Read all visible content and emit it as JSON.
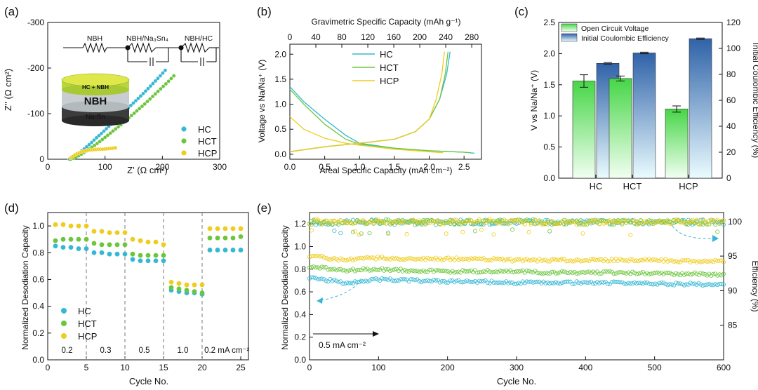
{
  "colors": {
    "hc": "#36b8d4",
    "hct": "#6cc63c",
    "hcp": "#f0cc1c",
    "ocv_top": "#46d646",
    "ice_top": "#2f62a8"
  },
  "chart_data": [
    {
      "id": "a",
      "panel_label": "(a)",
      "type": "scatter",
      "xlabel": "Z' (Ω cm²)",
      "ylabel": "Z'' (Ω cm²)",
      "xlim": [
        0,
        300
      ],
      "ylim": [
        0,
        -300
      ],
      "xticks": [
        "0",
        "100",
        "200",
        "300"
      ],
      "yticks": [
        "0",
        "-100",
        "-200",
        "-300"
      ],
      "legend": [
        "HC",
        "HCT",
        "HCP"
      ],
      "circuit": [
        "NBH",
        "NBH/Na₃Sn₄",
        "NBH/HC"
      ],
      "cell_layers": [
        "HC + NBH",
        "NBH",
        "Na-Sn"
      ],
      "series": [
        {
          "name": "HC",
          "x": [
            38,
            45,
            55,
            65,
            75,
            85,
            95,
            105,
            115,
            125,
            135,
            145,
            155,
            165,
            175,
            185,
            195,
            205
          ],
          "y": [
            0,
            -5,
            -14,
            -24,
            -35,
            -47,
            -58,
            -70,
            -82,
            -94,
            -106,
            -118,
            -130,
            -142,
            -155,
            -168,
            -181,
            -195
          ]
        },
        {
          "name": "HCT",
          "x": [
            40,
            50,
            60,
            70,
            80,
            90,
            100,
            110,
            120,
            130,
            140,
            150,
            160,
            170,
            180,
            190,
            200,
            210,
            220
          ],
          "y": [
            0,
            -5,
            -12,
            -20,
            -29,
            -38,
            -48,
            -58,
            -68,
            -78,
            -89,
            -100,
            -111,
            -122,
            -134,
            -146,
            -158,
            -170,
            -183
          ]
        },
        {
          "name": "HCP",
          "x": [
            40,
            48,
            56,
            64,
            72,
            80,
            88,
            96,
            104,
            112,
            118
          ],
          "y": [
            -3,
            -10,
            -15,
            -18,
            -20,
            -21,
            -22,
            -22,
            -23,
            -24,
            -25
          ]
        }
      ]
    },
    {
      "id": "b",
      "panel_label": "(b)",
      "type": "line",
      "xlabel": "Areal Specific Capacity (mAh cm⁻²)",
      "ylabel": "Voltage vs Na/Na⁺ (V)",
      "top_xlabel": "Gravimetric Specific Capacity (mAh g⁻¹)",
      "xlim": [
        0,
        2.75
      ],
      "ylim": [
        -0.1,
        2.2
      ],
      "xticks": [
        "0.0",
        "0.5",
        "1.0",
        "1.5",
        "2.0",
        "2.5"
      ],
      "yticks": [
        "0.0",
        "0.5",
        "1.0",
        "1.5",
        "2.0"
      ],
      "top_xticks": [
        "0",
        "40",
        "80",
        "120",
        "160",
        "200",
        "240",
        "280"
      ],
      "legend": [
        "HC",
        "HCT",
        "HCP"
      ],
      "series": [
        {
          "name": "HC",
          "discharge": {
            "x": [
              0,
              0.2,
              0.5,
              0.8,
              1.0,
              1.5,
              2.0,
              2.5,
              2.65
            ],
            "y": [
              1.35,
              1.05,
              0.7,
              0.38,
              0.22,
              0.12,
              0.07,
              0.04,
              0.02
            ]
          },
          "charge": {
            "x": [
              0,
              0.5,
              1.0,
              1.5,
              1.8,
              2.0,
              2.15,
              2.25,
              2.3
            ],
            "y": [
              0.05,
              0.15,
              0.22,
              0.3,
              0.45,
              0.7,
              1.1,
              1.6,
              2.05
            ]
          }
        },
        {
          "name": "HCT",
          "discharge": {
            "x": [
              0,
              0.2,
              0.5,
              0.8,
              1.0,
              1.5,
              2.0,
              2.5,
              2.6
            ],
            "y": [
              1.3,
              1.0,
              0.6,
              0.3,
              0.2,
              0.12,
              0.07,
              0.04,
              0.03
            ]
          },
          "charge": {
            "x": [
              0,
              0.5,
              1.0,
              1.5,
              1.8,
              2.0,
              2.15,
              2.23,
              2.27
            ],
            "y": [
              0.05,
              0.15,
              0.22,
              0.3,
              0.45,
              0.7,
              1.1,
              1.6,
              2.05
            ]
          }
        },
        {
          "name": "HCP",
          "discharge": {
            "x": [
              0,
              0.2,
              0.5,
              0.8,
              1.0,
              1.5,
              2.0,
              2.2
            ],
            "y": [
              0.75,
              0.5,
              0.32,
              0.22,
              0.18,
              0.1,
              0.05,
              0.03
            ]
          },
          "charge": {
            "x": [
              0,
              0.5,
              1.0,
              1.5,
              1.8,
              2.0,
              2.1,
              2.18,
              2.22
            ],
            "y": [
              0.05,
              0.15,
              0.22,
              0.3,
              0.45,
              0.7,
              1.1,
              1.6,
              2.05
            ]
          }
        }
      ]
    },
    {
      "id": "c",
      "panel_label": "(c)",
      "type": "bar",
      "categories": [
        "HC",
        "HCT",
        "HCP"
      ],
      "ylabel": "V vs Na/Na⁺ (V)",
      "y2label": "Initial Coulombic Efficiency (%)",
      "ylim": [
        0,
        2.5
      ],
      "y2lim": [
        0,
        120
      ],
      "yticks": [
        "0.0",
        "0.5",
        "1.0",
        "1.5",
        "2.0",
        "2.5"
      ],
      "y2ticks": [
        "0",
        "20",
        "40",
        "60",
        "80",
        "100",
        "120"
      ],
      "series": [
        {
          "name": "Open Circuit Voltage",
          "axis": "left",
          "values": [
            1.56,
            1.6,
            1.11
          ],
          "errors": [
            0.1,
            0.04,
            0.05
          ]
        },
        {
          "name": "Initial Coulombic Efficiency",
          "axis": "right",
          "values": [
            88.5,
            96.5,
            107.5
          ],
          "errors": [
            0.6,
            0.6,
            0.5
          ]
        }
      ]
    },
    {
      "id": "d",
      "panel_label": "(d)",
      "type": "scatter",
      "xlabel": "Cycle No.",
      "ylabel": "Normalized Desodiation Capacity",
      "xlim": [
        0,
        26
      ],
      "ylim": [
        0,
        1.1
      ],
      "xticks": [
        "0",
        "5",
        "10",
        "15",
        "20",
        "25"
      ],
      "yticks": [
        "0.0",
        "0.2",
        "0.4",
        "0.6",
        "0.8",
        "1.0"
      ],
      "rate_labels": [
        "0.2",
        "0.3",
        "0.5",
        "1.0",
        "0.2 mA cm⁻²"
      ],
      "legend": [
        "HC",
        "HCT",
        "HCP"
      ],
      "series": [
        {
          "name": "HC",
          "x": [
            1,
            2,
            3,
            4,
            5,
            6,
            7,
            8,
            9,
            10,
            11,
            12,
            13,
            14,
            15,
            16,
            17,
            18,
            19,
            20,
            21,
            22,
            23,
            24,
            25
          ],
          "y": [
            0.85,
            0.84,
            0.84,
            0.83,
            0.83,
            0.8,
            0.8,
            0.79,
            0.79,
            0.79,
            0.75,
            0.74,
            0.74,
            0.74,
            0.74,
            0.52,
            0.51,
            0.5,
            0.5,
            0.49,
            0.82,
            0.82,
            0.82,
            0.82,
            0.82
          ]
        },
        {
          "name": "HCT",
          "x": [
            1,
            2,
            3,
            4,
            5,
            6,
            7,
            8,
            9,
            10,
            11,
            12,
            13,
            14,
            15,
            16,
            17,
            18,
            19,
            20,
            21,
            22,
            23,
            24,
            25
          ],
          "y": [
            0.89,
            0.9,
            0.9,
            0.9,
            0.9,
            0.87,
            0.86,
            0.86,
            0.86,
            0.86,
            0.79,
            0.78,
            0.78,
            0.78,
            0.78,
            0.54,
            0.53,
            0.52,
            0.51,
            0.5,
            0.91,
            0.91,
            0.91,
            0.91,
            0.92
          ]
        },
        {
          "name": "HCP",
          "x": [
            1,
            2,
            3,
            4,
            5,
            6,
            7,
            8,
            9,
            10,
            11,
            12,
            13,
            14,
            15,
            16,
            17,
            18,
            19,
            20,
            21,
            22,
            23,
            24,
            25
          ],
          "y": [
            1.01,
            1.01,
            1.0,
            1.0,
            1.0,
            0.96,
            0.96,
            0.95,
            0.95,
            0.95,
            0.9,
            0.89,
            0.88,
            0.88,
            0.86,
            0.58,
            0.57,
            0.56,
            0.56,
            0.56,
            0.98,
            0.98,
            0.98,
            0.98,
            0.98
          ]
        }
      ]
    },
    {
      "id": "e",
      "panel_label": "(e)",
      "type": "scatter",
      "xlabel": "Cycle No.",
      "ylabel": "Normalized Desodiation Capacity",
      "y2label": "Efficiency (%)",
      "xlim": [
        0,
        600
      ],
      "ylim": [
        0,
        1.3
      ],
      "y2lim": [
        80,
        101.3
      ],
      "xticks": [
        "0",
        "100",
        "200",
        "300",
        "400",
        "500",
        "600"
      ],
      "yticks": [
        "0.0",
        "0.2",
        "0.4",
        "0.6",
        "0.8",
        "1.0",
        "1.2"
      ],
      "y2ticks": [
        "85",
        "90",
        "95",
        "100"
      ],
      "annotation": "0.5 mA cm⁻²",
      "series": [
        {
          "name": "HC capacity",
          "axis": "left",
          "x": [
            0,
            50,
            100,
            150,
            200,
            250,
            300,
            350,
            400,
            450,
            500,
            550,
            600
          ],
          "y": [
            0.73,
            0.68,
            0.71,
            0.7,
            0.69,
            0.69,
            0.68,
            0.68,
            0.68,
            0.68,
            0.67,
            0.67,
            0.66
          ]
        },
        {
          "name": "HCT capacity",
          "axis": "left",
          "x": [
            0,
            50,
            100,
            150,
            200,
            250,
            300,
            350,
            400,
            450,
            500,
            550,
            600
          ],
          "y": [
            0.82,
            0.79,
            0.8,
            0.79,
            0.78,
            0.78,
            0.78,
            0.77,
            0.77,
            0.77,
            0.76,
            0.76,
            0.75
          ]
        },
        {
          "name": "HCP capacity",
          "axis": "left",
          "x": [
            0,
            50,
            100,
            150,
            200,
            250,
            300,
            350,
            400,
            450,
            500,
            550,
            600
          ],
          "y": [
            0.92,
            0.88,
            0.9,
            0.89,
            0.89,
            0.89,
            0.88,
            0.88,
            0.88,
            0.88,
            0.88,
            0.87,
            0.87
          ]
        },
        {
          "name": "HC efficiency",
          "axis": "right",
          "x": [
            0,
            50,
            100,
            150,
            200,
            250,
            300,
            350,
            400,
            450,
            500,
            550,
            600
          ],
          "y": [
            99.8,
            99.9,
            99.9,
            99.8,
            99.9,
            99.9,
            99.9,
            99.9,
            99.9,
            99.9,
            99.9,
            99.9,
            99.9
          ]
        },
        {
          "name": "HCT efficiency",
          "axis": "right",
          "x": [
            0,
            50,
            100,
            150,
            200,
            250,
            300,
            350,
            400,
            450,
            500,
            550,
            600
          ],
          "y": [
            99.9,
            99.9,
            100,
            99.9,
            99.9,
            99.9,
            100,
            99.9,
            99.9,
            99.9,
            99.9,
            99.9,
            99.9
          ]
        },
        {
          "name": "HCP efficiency",
          "axis": "right",
          "x": [
            0,
            50,
            100,
            150,
            200,
            250,
            300,
            350,
            400,
            450,
            500,
            550,
            600
          ],
          "y": [
            100,
            99.9,
            100,
            99.9,
            99.9,
            100,
            99.9,
            99.9,
            99.9,
            99.9,
            99.9,
            100,
            99.9
          ]
        }
      ]
    }
  ]
}
